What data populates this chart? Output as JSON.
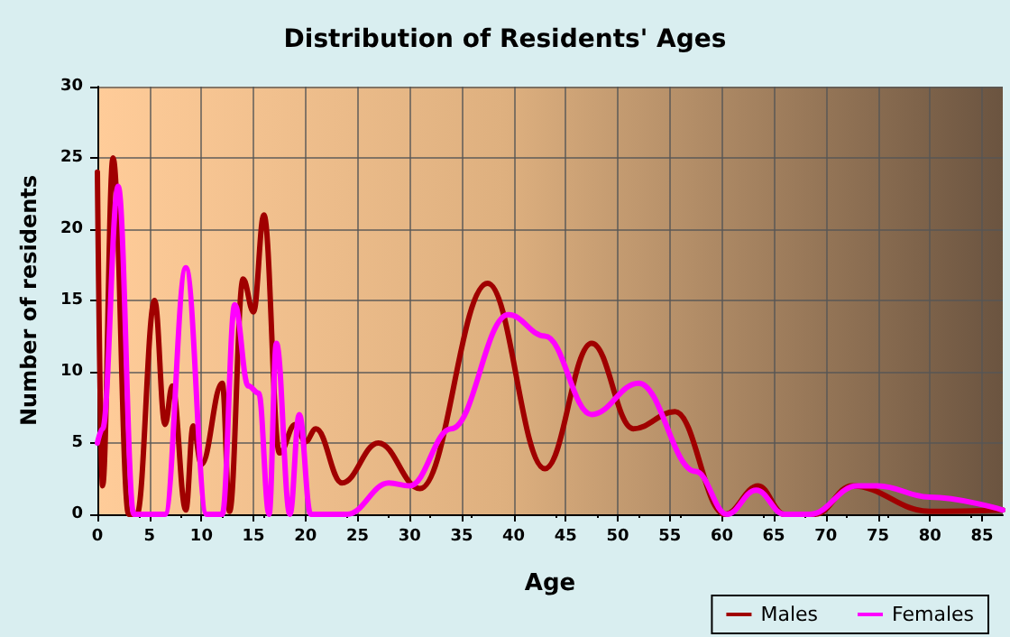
{
  "chart_data": {
    "type": "line",
    "title": "Distribution of Residents' Ages",
    "xlabel": "Age",
    "ylabel": "Number of residents",
    "xlim": [
      0,
      87
    ],
    "xticks": [
      0,
      5,
      10,
      15,
      20,
      25,
      30,
      35,
      40,
      45,
      50,
      55,
      60,
      65,
      70,
      75,
      80,
      85
    ],
    "ylim": [
      0,
      30
    ],
    "yticks": [
      0,
      5,
      10,
      15,
      20,
      25,
      30
    ],
    "grid": true,
    "legend": "bottom right",
    "marker": "none",
    "line_style": "solid",
    "series": [
      {
        "name": "Males",
        "color": "#a00000",
        "x": [
          0,
          0.5,
          1.5,
          3,
          3.8,
          5.5,
          6.5,
          7.2,
          8.5,
          9.2,
          10,
          12,
          12.7,
          14,
          15,
          16,
          17.5,
          19,
          20,
          21,
          23.5,
          27,
          31,
          37.5,
          43,
          47.5,
          51.5,
          55.5,
          60.3,
          63.5,
          66,
          69,
          72.5,
          80,
          87
        ],
        "values": [
          24,
          2,
          25,
          0,
          0,
          15,
          6.3,
          9,
          0.3,
          6.2,
          3.5,
          9.2,
          0.2,
          16.5,
          14.2,
          21,
          4.3,
          6.3,
          5.1,
          6,
          2.2,
          5,
          1.8,
          16.2,
          3.2,
          12,
          6,
          7.2,
          0,
          2,
          0,
          0,
          2,
          0.2,
          0.3
        ]
      },
      {
        "name": "Females",
        "color": "#ff00ff",
        "x": [
          0,
          0.5,
          2,
          3.5,
          6.5,
          8.5,
          10.5,
          12,
          13.2,
          14.5,
          15.5,
          16.5,
          17.2,
          18.5,
          19.4,
          20.5,
          24,
          28,
          30,
          34,
          39.5,
          43,
          47.5,
          52,
          57.5,
          60.5,
          63.3,
          66,
          68.5,
          73,
          75,
          80,
          87
        ],
        "values": [
          5,
          6,
          23,
          0,
          0,
          17.3,
          0,
          0,
          14.7,
          9,
          8.5,
          0,
          12,
          0,
          7,
          0,
          0,
          2.2,
          2,
          6,
          14,
          12.5,
          7,
          9.2,
          3,
          0,
          1.7,
          0,
          0,
          2,
          2,
          1.2,
          0.3
        ]
      }
    ]
  }
}
